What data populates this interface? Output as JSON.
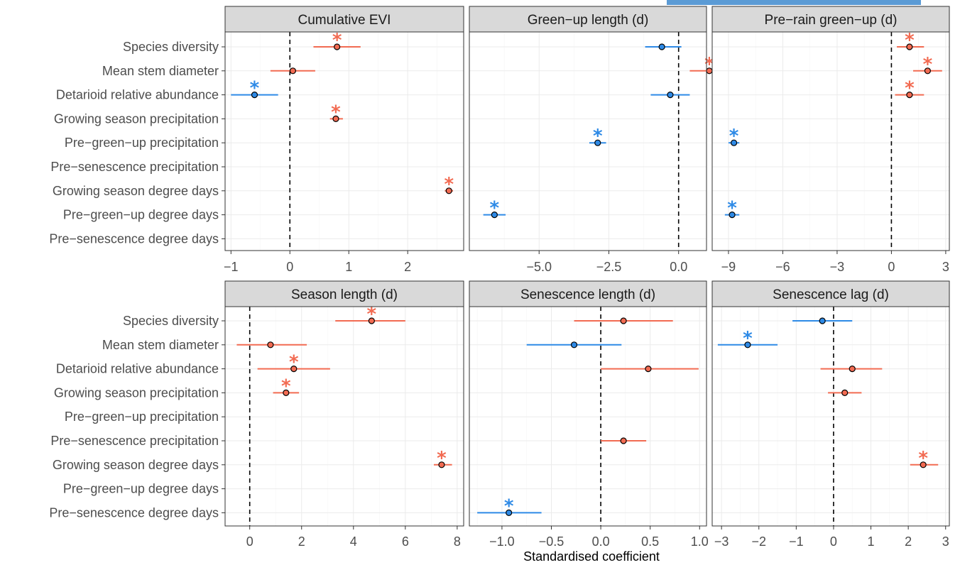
{
  "colors": {
    "positive": "#f26b52",
    "negative": "#2e8ae6",
    "point_stroke": "#000000"
  },
  "chart_data": {
    "type": "scatter",
    "subtype": "coefficient-plot",
    "xlabel": "Standardised coefficient",
    "categories": [
      "Species diversity",
      "Mean stem diameter",
      "Detarioid relative abundance",
      "Growing season precipitation",
      "Pre−green−up precipitation",
      "Pre−senescence precipitation",
      "Growing season degree days",
      "Pre−green−up degree days",
      "Pre−senescence degree days"
    ],
    "grid": true,
    "reference_line": 0,
    "panels": [
      {
        "title": "Cumulative EVI",
        "xlim": [
          -1.1,
          2.95
        ],
        "ticks": [
          -1,
          0,
          1,
          2
        ],
        "tick_labels": [
          "−1",
          "0",
          "1",
          "2"
        ],
        "points": [
          {
            "category": "Species diversity",
            "estimate": 0.8,
            "lower": 0.4,
            "upper": 1.2,
            "significant": true
          },
          {
            "category": "Mean stem diameter",
            "estimate": 0.05,
            "lower": -0.33,
            "upper": 0.43,
            "significant": false
          },
          {
            "category": "Detarioid relative abundance",
            "estimate": -0.6,
            "lower": -1.0,
            "upper": -0.2,
            "significant": true
          },
          {
            "category": "Growing season precipitation",
            "estimate": 0.78,
            "lower": 0.68,
            "upper": 0.9,
            "significant": true
          },
          {
            "category": "Growing season degree days",
            "estimate": 2.7,
            "lower": 2.63,
            "upper": 2.77,
            "significant": true
          }
        ]
      },
      {
        "title": "Green−up length (d)",
        "xlim": [
          -7.5,
          1.0
        ],
        "ticks": [
          -5.0,
          -2.5,
          0.0
        ],
        "tick_labels": [
          "−5.0",
          "−2.5",
          "0.0"
        ],
        "points": [
          {
            "category": "Species diversity",
            "estimate": -0.6,
            "lower": -1.2,
            "upper": 0.1,
            "significant": false
          },
          {
            "category": "Mean stem diameter",
            "estimate": 1.1,
            "lower": 0.4,
            "upper": 1.8,
            "significant": true
          },
          {
            "category": "Detarioid relative abundance",
            "estimate": -0.3,
            "lower": -1.0,
            "upper": 0.4,
            "significant": false
          },
          {
            "category": "Pre−green−up precipitation",
            "estimate": -2.9,
            "lower": -3.2,
            "upper": -2.6,
            "significant": true
          },
          {
            "category": "Pre−green−up degree days",
            "estimate": -6.6,
            "lower": -7.0,
            "upper": -6.2,
            "significant": true
          }
        ]
      },
      {
        "title": "Pre−rain green−up (d)",
        "xlim": [
          -9.9,
          3.2
        ],
        "ticks": [
          -9,
          -6,
          -3,
          0,
          3
        ],
        "tick_labels": [
          "−9",
          "−6",
          "−3",
          "0",
          "3"
        ],
        "points": [
          {
            "category": "Species diversity",
            "estimate": 1.0,
            "lower": 0.3,
            "upper": 1.8,
            "significant": true
          },
          {
            "category": "Mean stem diameter",
            "estimate": 2.0,
            "lower": 1.2,
            "upper": 2.8,
            "significant": true
          },
          {
            "category": "Detarioid relative abundance",
            "estimate": 1.0,
            "lower": 0.2,
            "upper": 1.8,
            "significant": true
          },
          {
            "category": "Pre−green−up precipitation",
            "estimate": -8.7,
            "lower": -9.0,
            "upper": -8.4,
            "significant": true
          },
          {
            "category": "Pre−green−up degree days",
            "estimate": -8.8,
            "lower": -9.2,
            "upper": -8.4,
            "significant": true
          }
        ]
      },
      {
        "title": "Season length (d)",
        "xlim": [
          -0.95,
          8.25
        ],
        "ticks": [
          0,
          2,
          4,
          6,
          8
        ],
        "tick_labels": [
          "0",
          "2",
          "4",
          "6",
          "8"
        ],
        "points": [
          {
            "category": "Species diversity",
            "estimate": 4.7,
            "lower": 3.3,
            "upper": 6.0,
            "significant": true
          },
          {
            "category": "Mean stem diameter",
            "estimate": 0.8,
            "lower": -0.5,
            "upper": 2.2,
            "significant": false
          },
          {
            "category": "Detarioid relative abundance",
            "estimate": 1.7,
            "lower": 0.3,
            "upper": 3.1,
            "significant": true
          },
          {
            "category": "Growing season precipitation",
            "estimate": 1.4,
            "lower": 0.9,
            "upper": 1.9,
            "significant": true
          },
          {
            "category": "Growing season degree days",
            "estimate": 7.4,
            "lower": 7.1,
            "upper": 7.8,
            "significant": true
          }
        ]
      },
      {
        "title": "Senescence length (d)",
        "xlim": [
          -1.33,
          1.07
        ],
        "ticks": [
          -1.0,
          -0.5,
          0.0,
          0.5,
          1.0
        ],
        "tick_labels": [
          "−1.0",
          "−0.5",
          "0.0",
          "0.5",
          "1.0"
        ],
        "points": [
          {
            "category": "Species diversity",
            "estimate": 0.23,
            "lower": -0.27,
            "upper": 0.73,
            "significant": false
          },
          {
            "category": "Mean stem diameter",
            "estimate": -0.27,
            "lower": -0.75,
            "upper": 0.21,
            "significant": false
          },
          {
            "category": "Detarioid relative abundance",
            "estimate": 0.48,
            "lower": 0.0,
            "upper": 0.99,
            "significant": false
          },
          {
            "category": "Pre−senescence precipitation",
            "estimate": 0.23,
            "lower": 0.0,
            "upper": 0.46,
            "significant": false
          },
          {
            "category": "Pre−senescence degree days",
            "estimate": -0.93,
            "lower": -1.25,
            "upper": -0.6,
            "significant": true
          }
        ]
      },
      {
        "title": "Senescence lag (d)",
        "xlim": [
          -3.25,
          3.1
        ],
        "ticks": [
          -3,
          -2,
          -1,
          0,
          1,
          2,
          3
        ],
        "tick_labels": [
          "−3",
          "−2",
          "−1",
          "0",
          "1",
          "2",
          "3"
        ],
        "points": [
          {
            "category": "Species diversity",
            "estimate": -0.3,
            "lower": -1.1,
            "upper": 0.5,
            "significant": false
          },
          {
            "category": "Mean stem diameter",
            "estimate": -2.3,
            "lower": -3.1,
            "upper": -1.5,
            "significant": true
          },
          {
            "category": "Detarioid relative abundance",
            "estimate": 0.5,
            "lower": -0.35,
            "upper": 1.3,
            "significant": false
          },
          {
            "category": "Growing season precipitation",
            "estimate": 0.3,
            "lower": -0.15,
            "upper": 0.75,
            "significant": false
          },
          {
            "category": "Growing season degree days",
            "estimate": 2.4,
            "lower": 2.05,
            "upper": 2.8,
            "significant": true
          }
        ]
      }
    ]
  }
}
